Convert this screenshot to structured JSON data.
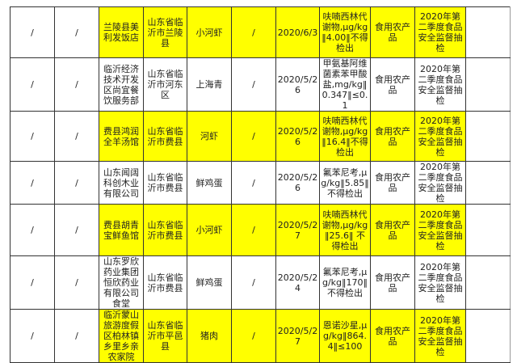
{
  "highlight_color": "#ffff00",
  "rows": [
    {
      "c1": "/",
      "c2": "/",
      "name": "兰陵县美利发饭店",
      "address": "山东省临沂市兰陵县",
      "food": "小河虾",
      "brand": "/",
      "date": "2020/6/3",
      "item": "呋喃西林代谢物,μg/kg‖4.00‖不得检出",
      "category": "食用农产品",
      "task": "2020年第二季度食品安全监督抽检",
      "last": "",
      "highlight": true
    },
    {
      "c1": "/",
      "c2": "/",
      "name": "临沂经济技术开发区尚宜餐饮服务部",
      "address": "山东省临沂市河东区",
      "food": "上海青",
      "brand": "/",
      "date": "2020/5/26",
      "item": "甲氨基阿维菌素苯甲酸盐,mg/kg‖0.347‖≤0.1",
      "category": "食用农产品",
      "task": "2020年第二季度食品安全监督抽检",
      "last": "",
      "highlight": false
    },
    {
      "c1": "/",
      "c2": "/",
      "name": "费县鸿润全羊汤馆",
      "address": "山东省临沂市费县",
      "food": "河虾",
      "brand": "/",
      "date": "2020/5/26",
      "item": "呋喃西林代谢物,μg/kg‖16.4‖不得检出",
      "category": "食用农产品",
      "task": "2020年第二季度食品安全监督抽检",
      "last": "",
      "highlight": true
    },
    {
      "c1": "/",
      "c2": "/",
      "name": "山东闻阔科创木业有限公司",
      "address": "山东省临沂市费县",
      "food": "鲜鸡蛋",
      "brand": "/",
      "date": "2020/5/26",
      "item": "氟苯尼考,μg/kg‖5.85‖不得检出",
      "category": "食用农产品",
      "task": "2020年第二季度食品安全监督抽检",
      "last": "",
      "highlight": false
    },
    {
      "c1": "/",
      "c2": "/",
      "name": "费县胡青宝鲜鱼馆",
      "address": "山东省临沂市费县",
      "food": "小河虾",
      "brand": "/",
      "date": "2020/5/27",
      "item": "呋喃西林代谢物,μg/kg‖25.6‖ 不得检出",
      "category": "食用农产品",
      "task": "2020年第二季度食品安全监督抽检",
      "last": "",
      "highlight": true
    },
    {
      "c1": "/",
      "c2": "/",
      "name": "山东罗欣药业集团恒欣药业有限公司食堂",
      "address": "山东省临沂市费县",
      "food": "鲜鸡蛋",
      "brand": "/",
      "date": "2020/5/24",
      "item": "氟苯尼考,μg/kg‖170‖不得检出",
      "category": "食用农产品",
      "task": "2020年第二季度食品安全监督抽检",
      "last": "",
      "highlight": false
    },
    {
      "c1": "/",
      "c2": "/",
      "name": "临沂蒙山旅游度假区柏林镇乡里乡亲农家院",
      "address": "山东省临沂市平邑县",
      "food": "猪肉",
      "brand": "/",
      "date": "2020/5/27",
      "item": "恩诺沙星,μg/kg‖864.4‖≤100",
      "category": "食用农产品",
      "task": "2020年第二季度食品安全监督抽检",
      "last": "",
      "highlight": true
    }
  ]
}
